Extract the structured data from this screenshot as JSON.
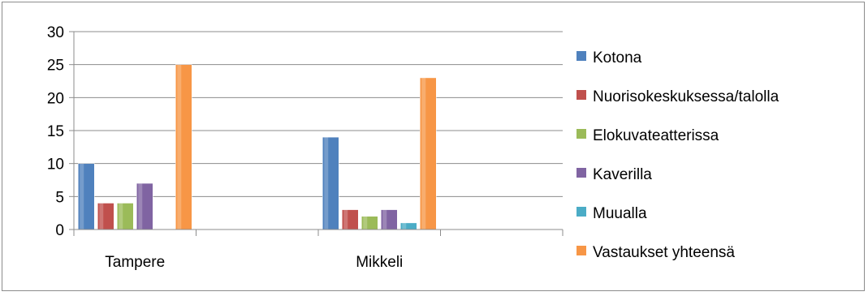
{
  "chart_data": {
    "type": "bar",
    "title": "",
    "xlabel": "",
    "ylabel": "",
    "categories": [
      "Tampere",
      "Mikkeli"
    ],
    "ylim": [
      0,
      30
    ],
    "yticks": [
      0,
      5,
      10,
      15,
      20,
      25,
      30
    ],
    "grid": true,
    "legend_position": "right",
    "series": [
      {
        "name": "Kotona",
        "values": [
          10,
          14
        ],
        "color": "#4f81bd"
      },
      {
        "name": "Nuorisokeskuksessa/talolla",
        "values": [
          4,
          3
        ],
        "color": "#c0504d"
      },
      {
        "name": "Elokuvateatterissa",
        "values": [
          4,
          2
        ],
        "color": "#9bbb59"
      },
      {
        "name": "Kaverilla",
        "values": [
          7,
          3
        ],
        "color": "#8064a2"
      },
      {
        "name": "Muualla",
        "values": [
          0,
          1
        ],
        "color": "#4bacc6"
      },
      {
        "name": "Vastaukset yhteensä",
        "values": [
          25,
          23
        ],
        "color": "#f79646"
      }
    ]
  }
}
